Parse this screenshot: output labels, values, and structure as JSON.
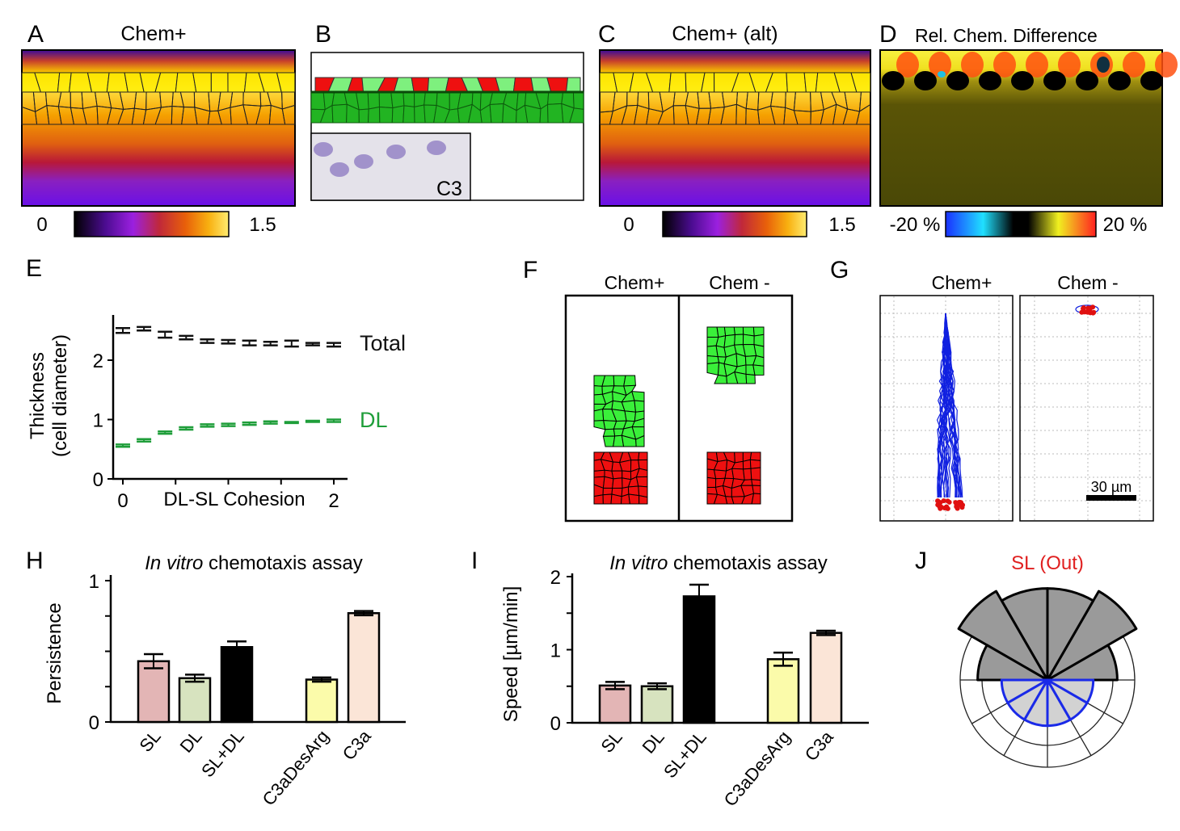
{
  "panels": {
    "A": {
      "label": "A",
      "title": "Chem+",
      "colorbar_min": "0",
      "colorbar_max": "1.5"
    },
    "B": {
      "label": "B",
      "inset_label": "C3"
    },
    "C": {
      "label": "C",
      "title": "Chem+ (alt)",
      "colorbar_min": "0",
      "colorbar_max": "1.5"
    },
    "D": {
      "label": "D",
      "title": "Rel. Chem. Difference",
      "colorbar_min": "-20 %",
      "colorbar_max": "20 %"
    },
    "E": {
      "label": "E"
    },
    "F": {
      "label": "F",
      "col_titles": [
        "Chem+",
        "Chem -"
      ]
    },
    "G": {
      "label": "G",
      "col_titles": [
        "Chem+",
        "Chem -"
      ],
      "scale_bar": "30 µm"
    },
    "H": {
      "label": "H"
    },
    "I": {
      "label": "I"
    },
    "J": {
      "label": "J"
    }
  },
  "colors": {
    "sl": "#e3b5b5",
    "dl": "#d7e3bf",
    "sl_dl": "#000000",
    "c3adesarg": "#fbfbaa",
    "c3a": "#fbe5d7",
    "dl_line": "#1f9e3a",
    "chem_minus_title": "#e02020"
  },
  "chart_data": [
    {
      "id": "E",
      "type": "line",
      "xlabel": "DL-SL Cohesion",
      "ylabel": [
        "Thickness",
        "(cell diameter)"
      ],
      "xlim": [
        0,
        2
      ],
      "ylim": [
        0,
        2.7
      ],
      "xticks": [
        "0",
        "2"
      ],
      "yticks": [
        "0",
        "1",
        "2"
      ],
      "x": [
        0,
        0.2,
        0.4,
        0.6,
        0.8,
        1.0,
        1.2,
        1.4,
        1.6,
        1.8,
        2.0
      ],
      "series": [
        {
          "name": "Total",
          "values": [
            2.5,
            2.53,
            2.43,
            2.38,
            2.32,
            2.31,
            2.29,
            2.28,
            2.28,
            2.27,
            2.26
          ],
          "errors": [
            0.04,
            0.03,
            0.05,
            0.03,
            0.03,
            0.03,
            0.04,
            0.03,
            0.05,
            0.02,
            0.03
          ]
        },
        {
          "name": "DL",
          "values": [
            0.56,
            0.65,
            0.78,
            0.85,
            0.9,
            0.91,
            0.93,
            0.95,
            0.95,
            0.97,
            0.98
          ],
          "errors": [
            0.02,
            0.02,
            0.02,
            0.02,
            0.02,
            0.02,
            0.02,
            0.02,
            0.01,
            0.01,
            0.02
          ]
        }
      ]
    },
    {
      "id": "H",
      "type": "bar",
      "title_italic": "In vitro",
      "title": " chemotaxis assay",
      "ylabel": "Persistence",
      "ylim": [
        0,
        1
      ],
      "yticks": [
        "0",
        "1"
      ],
      "categories": [
        "SL",
        "DL",
        "SL+DL",
        "C3aDesArg",
        "C3a"
      ],
      "values": [
        0.43,
        0.31,
        0.53,
        0.3,
        0.77
      ],
      "errors": [
        0.05,
        0.025,
        0.04,
        0.015,
        0.015
      ]
    },
    {
      "id": "I",
      "type": "bar",
      "title_italic": "In vitro",
      "title": " chemotaxis assay",
      "ylabel": "Speed [µm/min]",
      "ylim": [
        0,
        2
      ],
      "yticks": [
        "0",
        "1",
        "2"
      ],
      "categories": [
        "SL",
        "DL",
        "SL+DL",
        "C3aDesArg",
        "C3a"
      ],
      "values": [
        0.51,
        0.5,
        1.73,
        0.87,
        1.23
      ],
      "errors": [
        0.05,
        0.04,
        0.16,
        0.09,
        0.03
      ]
    },
    {
      "id": "J",
      "type": "rose",
      "title": "SL (Out)",
      "sector_degrees": 30,
      "rings": 4,
      "upper_values": [
        3.2,
        4.7,
        4.2,
        4.2,
        4.7,
        3.2
      ],
      "lower_values": [
        2.1,
        2.1,
        2.1,
        2.1,
        2.1,
        2.1
      ]
    }
  ]
}
